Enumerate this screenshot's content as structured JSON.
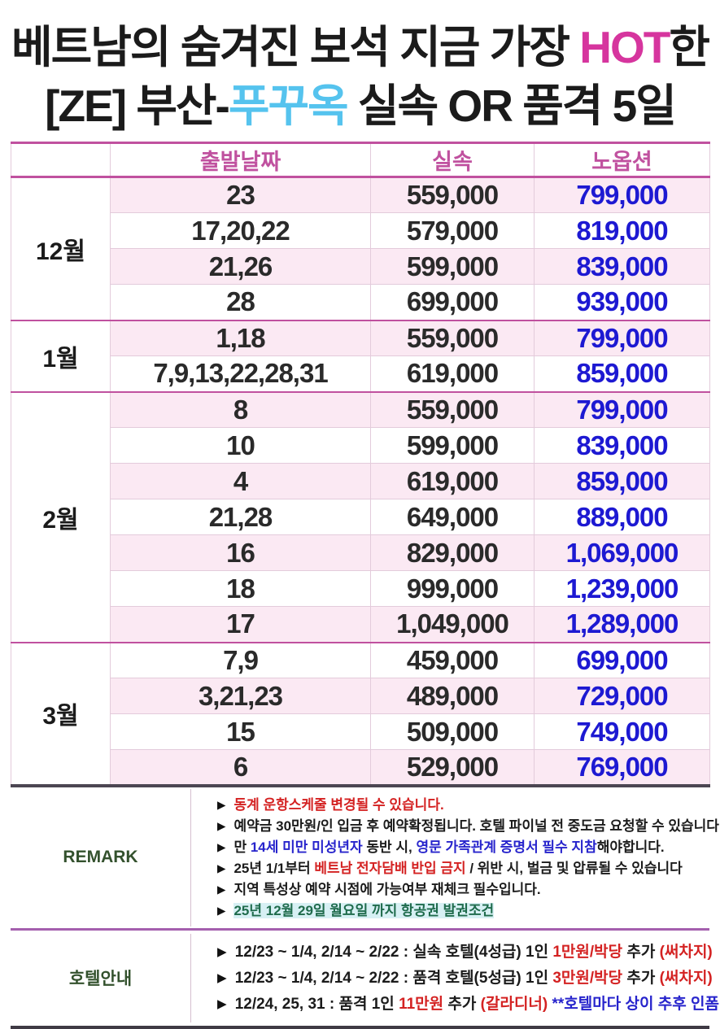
{
  "colors": {
    "black": "#1b1b1b",
    "magenta": "#d6359e",
    "skyblue": "#55c3ee",
    "header_magenta": "#c0519f",
    "price_blue": "#1d19d2",
    "row_pink": "#fbe9f3",
    "red": "#d42222",
    "blue": "#2724cc",
    "green_label": "#33512d",
    "green_text": "#1f6b4c",
    "cyan_highlight": "#d7f0f4"
  },
  "title": {
    "line1": [
      {
        "text": "베트남의 숨겨진 보석 지금 가장 ",
        "color": "black"
      },
      {
        "text": "HOT",
        "color": "magenta"
      },
      {
        "text": "한",
        "color": "black"
      }
    ],
    "line2": [
      {
        "text": "[ZE] 부산-",
        "color": "black"
      },
      {
        "text": "푸꾸옥",
        "color": "skyblue"
      },
      {
        "text": " 실속 OR 품격 5일",
        "color": "black"
      }
    ]
  },
  "table": {
    "headers": {
      "month": "",
      "date": "출발날짜",
      "value": "실속",
      "nooption": "노옵션"
    },
    "groups": [
      {
        "month": "12월",
        "rows": [
          [
            "23",
            "559,000",
            "799,000"
          ],
          [
            "17,20,22",
            "579,000",
            "819,000"
          ],
          [
            "21,26",
            "599,000",
            "839,000"
          ],
          [
            "28",
            "699,000",
            "939,000"
          ]
        ]
      },
      {
        "month": "1월",
        "rows": [
          [
            "1,18",
            "559,000",
            "799,000"
          ],
          [
            "7,9,13,22,28,31",
            "619,000",
            "859,000"
          ]
        ]
      },
      {
        "month": "2월",
        "rows": [
          [
            "8",
            "559,000",
            "799,000"
          ],
          [
            "10",
            "599,000",
            "839,000"
          ],
          [
            "4",
            "619,000",
            "859,000"
          ],
          [
            "21,28",
            "649,000",
            "889,000"
          ],
          [
            "16",
            "829,000",
            "1,069,000"
          ],
          [
            "18",
            "999,000",
            "1,239,000"
          ],
          [
            "17",
            "1,049,000",
            "1,289,000"
          ]
        ]
      },
      {
        "month": "3월",
        "rows": [
          [
            "7,9",
            "459,000",
            "699,000"
          ],
          [
            "3,21,23",
            "489,000",
            "729,000"
          ],
          [
            "15",
            "509,000",
            "749,000"
          ],
          [
            "6",
            "529,000",
            "769,000"
          ]
        ]
      }
    ]
  },
  "remark": {
    "label": "REMARK",
    "bullet": "▶",
    "lines": [
      {
        "segments": [
          {
            "text": "동계 운항스케줄 변경될 수 있습니다.",
            "color": "red"
          }
        ]
      },
      {
        "segments": [
          {
            "text": "예약금 30만원/인 입금 후 예약확정됩니다. 호텔 파이널 전 중도금 요청할 수 있습니다.",
            "color": "black"
          }
        ]
      },
      {
        "segments": [
          {
            "text": "만 ",
            "color": "black"
          },
          {
            "text": "14세 미만 미성년자",
            "color": "blue"
          },
          {
            "text": " 동반 시, ",
            "color": "black"
          },
          {
            "text": "영문 가족관계 증명서 필수 지참",
            "color": "blue"
          },
          {
            "text": "해야합니다.",
            "color": "black"
          }
        ]
      },
      {
        "segments": [
          {
            "text": "25년 1/1부터 ",
            "color": "black"
          },
          {
            "text": "베트남 전자담배 반입 금지",
            "color": "red"
          },
          {
            "text": " / 위반 시, 벌금 및 압류될 수 있습니다",
            "color": "black"
          }
        ]
      },
      {
        "segments": [
          {
            "text": "지역 특성상 예약 시점에 가능여부 재체크 필수입니다.",
            "color": "black"
          }
        ]
      },
      {
        "segments": [
          {
            "text": "25년 12월 29일 월요일 까지 항공권 발권조건",
            "color": "green_text",
            "highlight": true
          }
        ]
      }
    ]
  },
  "hotel": {
    "label": "호텔안내",
    "bullet": "▶",
    "lines": [
      {
        "segments": [
          {
            "text": "12/23 ~ 1/4, 2/14 ~ 2/22 : 실속 호텔(4성급) 1인 ",
            "color": "black"
          },
          {
            "text": "1만원/박당",
            "color": "red"
          },
          {
            "text": " 추가 ",
            "color": "black"
          },
          {
            "text": "(써차지)",
            "color": "red"
          }
        ]
      },
      {
        "segments": [
          {
            "text": "12/23 ~ 1/4, 2/14 ~ 2/22 : 품격 호텔(5성급) 1인 ",
            "color": "black"
          },
          {
            "text": "3만원/박당",
            "color": "red"
          },
          {
            "text": " 추가 ",
            "color": "black"
          },
          {
            "text": "(써차지)",
            "color": "red"
          }
        ]
      },
      {
        "segments": [
          {
            "text": "12/24, 25, 31 : 품격 1인 ",
            "color": "black"
          },
          {
            "text": "11만원",
            "color": "red"
          },
          {
            "text": " 추가 ",
            "color": "black"
          },
          {
            "text": "(갈라디너)",
            "color": "red"
          },
          {
            "text": " **호텔마다 상이 추후 인폼",
            "color": "blue"
          }
        ]
      }
    ]
  }
}
